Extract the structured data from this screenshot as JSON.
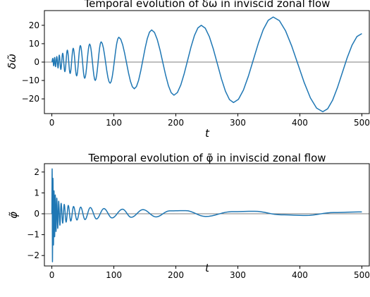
{
  "chart_data": [
    {
      "type": "line",
      "title": "Temporal evolution of δω in inviscid zonal flow",
      "xlabel": "t",
      "ylabel": "δω̃",
      "xlim": [
        -12,
        512
      ],
      "ylim": [
        -28,
        28
      ],
      "xticks": [
        0,
        100,
        200,
        300,
        400,
        500
      ],
      "yticks": [
        -20,
        -10,
        0,
        10,
        20
      ],
      "xtick_labels": [
        "0",
        "100",
        "200",
        "300",
        "400",
        "500"
      ],
      "ytick_labels": [
        "−20",
        "−10",
        "0",
        "10",
        "20"
      ],
      "hline": 0,
      "grid": false,
      "series": [
        {
          "color": "#1f77b4",
          "points": [
            [
              0,
              0
            ],
            [
              1.5,
              2
            ],
            [
              3,
              -2
            ],
            [
              4.5,
              2.5
            ],
            [
              6,
              -2.5
            ],
            [
              8,
              3
            ],
            [
              10,
              -3.2
            ],
            [
              12,
              3.8
            ],
            [
              14.5,
              -4
            ],
            [
              17.5,
              4.8
            ],
            [
              21,
              -5.2
            ],
            [
              25,
              6.5
            ],
            [
              29.5,
              -6.2
            ],
            [
              34.5,
              7.5
            ],
            [
              40,
              -7.5
            ],
            [
              46,
              9
            ],
            [
              53,
              -8.8
            ],
            [
              61,
              9.8
            ],
            [
              70,
              -10
            ],
            [
              79.5,
              11
            ],
            [
              94,
              -11.5
            ],
            [
              108,
              13.5
            ],
            [
              133,
              -14.5
            ],
            [
              161,
              17.5
            ],
            [
              197,
              -18
            ],
            [
              241,
              20
            ],
            [
              293,
              -22
            ],
            [
              357,
              24.5
            ],
            [
              437,
              -27
            ],
            [
              500,
              15.5
            ]
          ]
        }
      ]
    },
    {
      "type": "line",
      "title": "Temporal evolution of φ̃ in inviscid zonal flow",
      "xlabel": "t",
      "ylabel": "φ̃",
      "xlim": [
        -12,
        512
      ],
      "ylim": [
        -2.5,
        2.4
      ],
      "xticks": [
        0,
        100,
        200,
        300,
        400,
        500
      ],
      "yticks": [
        -2,
        -1,
        0,
        1,
        2
      ],
      "xtick_labels": [
        "0",
        "100",
        "200",
        "300",
        "400",
        "500"
      ],
      "ytick_labels": [
        "−2",
        "−1",
        "0",
        "1",
        "2"
      ],
      "hline": 0,
      "grid": false,
      "series": [
        {
          "color": "#1f77b4",
          "points": [
            [
              0,
              0
            ],
            [
              0.5,
              2.15
            ],
            [
              1,
              -2.3
            ],
            [
              1.8,
              1.7
            ],
            [
              2.6,
              -1.5
            ],
            [
              3.5,
              1.1
            ],
            [
              4.5,
              -1.1
            ],
            [
              5.5,
              0.9
            ],
            [
              6.7,
              -0.85
            ],
            [
              8,
              0.75
            ],
            [
              9.5,
              -0.7
            ],
            [
              11,
              0.6
            ],
            [
              13,
              -0.55
            ],
            [
              15,
              0.5
            ],
            [
              17.5,
              -0.45
            ],
            [
              20,
              0.45
            ],
            [
              23,
              -0.4
            ],
            [
              26.5,
              0.4
            ],
            [
              30.5,
              -0.35
            ],
            [
              35,
              0.35
            ],
            [
              40.5,
              -0.3
            ],
            [
              46.5,
              0.32
            ],
            [
              53.5,
              -0.28
            ],
            [
              62,
              0.3
            ],
            [
              72,
              -0.25
            ],
            [
              84,
              0.25
            ],
            [
              97,
              -0.2
            ],
            [
              114,
              0.22
            ],
            [
              128,
              -0.17
            ],
            [
              147,
              0.2
            ],
            [
              168,
              -0.15
            ],
            [
              190,
              0.14
            ],
            [
              216,
              0.15
            ],
            [
              248,
              -0.13
            ],
            [
              290,
              0.1
            ],
            [
              327,
              0.12
            ],
            [
              370,
              -0.05
            ],
            [
              410,
              -0.08
            ],
            [
              455,
              0.06
            ],
            [
              500,
              0.09
            ]
          ]
        }
      ]
    }
  ]
}
